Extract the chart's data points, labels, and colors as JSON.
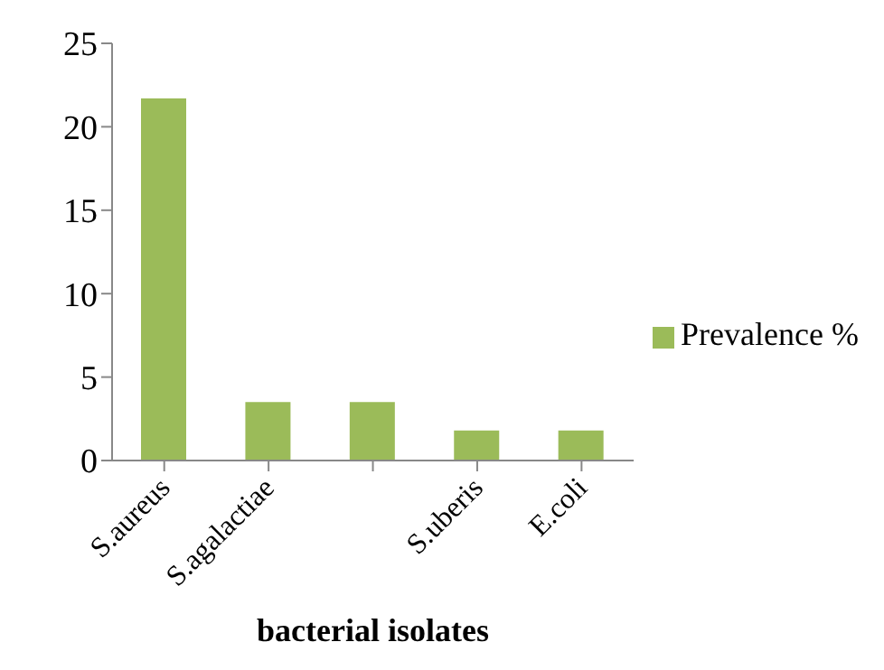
{
  "chart_data": {
    "type": "bar",
    "xlabel": "bacterial isolates",
    "categories": [
      "S.aureus",
      "S.agalactiae",
      null,
      "S.uberis",
      "E.coli"
    ],
    "series": [
      {
        "name": "Prevalence %",
        "color": "#9bbb59",
        "values": [
          21.7,
          3.5,
          3.5,
          1.8,
          1.8
        ]
      }
    ],
    "ylim": [
      0,
      25
    ],
    "yticks": [
      0,
      5,
      10,
      15,
      20,
      25
    ],
    "grid": false,
    "legend": "right"
  }
}
